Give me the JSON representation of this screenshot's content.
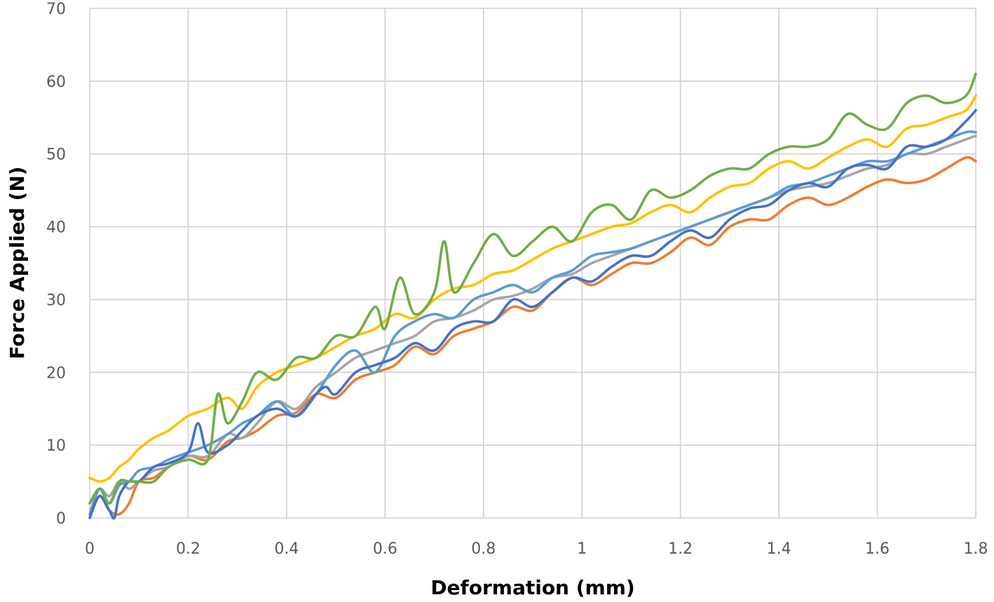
{
  "chart_data": {
    "type": "line",
    "title": "",
    "xlabel": "Deformation (mm)",
    "ylabel": "Force Applied (N)",
    "xlim": [
      0,
      1.8
    ],
    "ylim": [
      0,
      70
    ],
    "x_ticks": [
      "0",
      "0.2",
      "0.4",
      "0.6",
      "0.8",
      "1",
      "1.2",
      "1.4",
      "1.6",
      "1.8"
    ],
    "y_ticks": [
      "0",
      "10",
      "20",
      "30",
      "40",
      "50",
      "60",
      "70"
    ],
    "grid": true,
    "legend": "none",
    "series": [
      {
        "color": "#ed7d31",
        "points": [
          [
            0,
            0.5
          ],
          [
            0.02,
            3
          ],
          [
            0.04,
            1
          ],
          [
            0.06,
            0.5
          ],
          [
            0.08,
            2
          ],
          [
            0.1,
            5
          ],
          [
            0.13,
            5.5
          ],
          [
            0.16,
            7
          ],
          [
            0.2,
            8.5
          ],
          [
            0.24,
            8
          ],
          [
            0.28,
            10.5
          ],
          [
            0.31,
            11
          ],
          [
            0.34,
            12
          ],
          [
            0.38,
            14
          ],
          [
            0.42,
            14.5
          ],
          [
            0.46,
            17
          ],
          [
            0.5,
            16.5
          ],
          [
            0.54,
            19
          ],
          [
            0.58,
            20
          ],
          [
            0.62,
            21
          ],
          [
            0.66,
            23.5
          ],
          [
            0.7,
            22.5
          ],
          [
            0.74,
            25
          ],
          [
            0.78,
            26
          ],
          [
            0.82,
            27
          ],
          [
            0.86,
            29
          ],
          [
            0.9,
            28.5
          ],
          [
            0.94,
            31
          ],
          [
            0.98,
            33
          ],
          [
            1.02,
            32
          ],
          [
            1.06,
            33.5
          ],
          [
            1.1,
            35
          ],
          [
            1.14,
            35
          ],
          [
            1.18,
            36.5
          ],
          [
            1.22,
            38.5
          ],
          [
            1.26,
            37.5
          ],
          [
            1.3,
            40
          ],
          [
            1.34,
            41
          ],
          [
            1.38,
            41
          ],
          [
            1.42,
            43
          ],
          [
            1.46,
            44
          ],
          [
            1.5,
            43
          ],
          [
            1.54,
            44
          ],
          [
            1.58,
            45.5
          ],
          [
            1.62,
            46.5
          ],
          [
            1.66,
            46
          ],
          [
            1.7,
            46.5
          ],
          [
            1.74,
            48
          ],
          [
            1.78,
            49.5
          ],
          [
            1.8,
            49
          ]
        ]
      },
      {
        "color": "#a5a5a5",
        "points": [
          [
            0,
            2
          ],
          [
            0.02,
            4
          ],
          [
            0.04,
            3
          ],
          [
            0.06,
            5
          ],
          [
            0.08,
            4
          ],
          [
            0.1,
            5
          ],
          [
            0.13,
            6.5
          ],
          [
            0.16,
            7
          ],
          [
            0.2,
            8.5
          ],
          [
            0.24,
            8.5
          ],
          [
            0.28,
            11.5
          ],
          [
            0.31,
            11
          ],
          [
            0.34,
            13
          ],
          [
            0.38,
            16
          ],
          [
            0.42,
            15
          ],
          [
            0.46,
            18
          ],
          [
            0.5,
            20
          ],
          [
            0.54,
            22
          ],
          [
            0.58,
            23
          ],
          [
            0.62,
            24
          ],
          [
            0.66,
            25
          ],
          [
            0.7,
            27
          ],
          [
            0.74,
            27.5
          ],
          [
            0.78,
            28.5
          ],
          [
            0.82,
            30
          ],
          [
            0.86,
            30.5
          ],
          [
            0.9,
            31.5
          ],
          [
            0.94,
            33
          ],
          [
            0.98,
            33.5
          ],
          [
            1.02,
            35
          ],
          [
            1.06,
            36
          ],
          [
            1.1,
            37
          ],
          [
            1.14,
            38
          ],
          [
            1.18,
            39
          ],
          [
            1.22,
            40
          ],
          [
            1.26,
            41
          ],
          [
            1.3,
            42
          ],
          [
            1.34,
            43
          ],
          [
            1.38,
            44
          ],
          [
            1.42,
            45
          ],
          [
            1.46,
            45.5
          ],
          [
            1.5,
            46
          ],
          [
            1.54,
            47
          ],
          [
            1.58,
            48
          ],
          [
            1.62,
            48.5
          ],
          [
            1.66,
            50
          ],
          [
            1.7,
            50
          ],
          [
            1.74,
            51
          ],
          [
            1.78,
            52
          ],
          [
            1.8,
            52.5
          ]
        ]
      },
      {
        "color": "#ffc000",
        "points": [
          [
            0,
            5.5
          ],
          [
            0.02,
            5
          ],
          [
            0.04,
            5.5
          ],
          [
            0.06,
            7
          ],
          [
            0.08,
            8
          ],
          [
            0.1,
            9.5
          ],
          [
            0.13,
            11
          ],
          [
            0.16,
            12
          ],
          [
            0.2,
            14
          ],
          [
            0.24,
            15
          ],
          [
            0.28,
            16.5
          ],
          [
            0.31,
            15
          ],
          [
            0.34,
            18
          ],
          [
            0.38,
            20
          ],
          [
            0.42,
            21
          ],
          [
            0.46,
            22
          ],
          [
            0.5,
            23.5
          ],
          [
            0.54,
            25
          ],
          [
            0.58,
            26
          ],
          [
            0.62,
            28
          ],
          [
            0.66,
            27.5
          ],
          [
            0.7,
            30
          ],
          [
            0.74,
            31.5
          ],
          [
            0.78,
            32
          ],
          [
            0.82,
            33.5
          ],
          [
            0.86,
            34
          ],
          [
            0.9,
            35.5
          ],
          [
            0.94,
            37
          ],
          [
            0.98,
            38
          ],
          [
            1.02,
            39
          ],
          [
            1.06,
            40
          ],
          [
            1.1,
            40.5
          ],
          [
            1.14,
            42
          ],
          [
            1.18,
            43
          ],
          [
            1.22,
            42
          ],
          [
            1.26,
            44
          ],
          [
            1.3,
            45.5
          ],
          [
            1.34,
            46
          ],
          [
            1.38,
            48
          ],
          [
            1.42,
            49
          ],
          [
            1.46,
            48
          ],
          [
            1.5,
            49.5
          ],
          [
            1.54,
            51
          ],
          [
            1.58,
            52
          ],
          [
            1.62,
            51
          ],
          [
            1.66,
            53.5
          ],
          [
            1.7,
            54
          ],
          [
            1.74,
            55
          ],
          [
            1.78,
            56
          ],
          [
            1.8,
            58
          ]
        ]
      },
      {
        "color": "#5b9bd5",
        "points": [
          [
            0,
            0.5
          ],
          [
            0.02,
            4
          ],
          [
            0.04,
            2
          ],
          [
            0.06,
            4.5
          ],
          [
            0.08,
            5
          ],
          [
            0.1,
            6.5
          ],
          [
            0.13,
            7
          ],
          [
            0.16,
            8
          ],
          [
            0.2,
            9
          ],
          [
            0.24,
            10
          ],
          [
            0.28,
            11.5
          ],
          [
            0.31,
            13
          ],
          [
            0.34,
            14
          ],
          [
            0.38,
            16
          ],
          [
            0.42,
            14
          ],
          [
            0.46,
            17
          ],
          [
            0.5,
            21
          ],
          [
            0.54,
            23
          ],
          [
            0.58,
            20
          ],
          [
            0.62,
            25
          ],
          [
            0.66,
            27
          ],
          [
            0.7,
            28
          ],
          [
            0.74,
            27.5
          ],
          [
            0.78,
            30
          ],
          [
            0.82,
            31
          ],
          [
            0.86,
            32
          ],
          [
            0.9,
            31
          ],
          [
            0.94,
            33
          ],
          [
            0.98,
            34
          ],
          [
            1.02,
            36
          ],
          [
            1.06,
            36.5
          ],
          [
            1.1,
            37
          ],
          [
            1.14,
            38
          ],
          [
            1.18,
            39
          ],
          [
            1.22,
            40
          ],
          [
            1.26,
            41
          ],
          [
            1.3,
            42
          ],
          [
            1.34,
            43
          ],
          [
            1.38,
            44
          ],
          [
            1.42,
            45.5
          ],
          [
            1.46,
            46
          ],
          [
            1.5,
            47
          ],
          [
            1.54,
            48
          ],
          [
            1.58,
            49
          ],
          [
            1.62,
            49
          ],
          [
            1.66,
            50
          ],
          [
            1.7,
            51
          ],
          [
            1.74,
            52
          ],
          [
            1.78,
            53
          ],
          [
            1.8,
            53
          ]
        ]
      },
      {
        "color": "#4472c4",
        "points": [
          [
            0,
            0
          ],
          [
            0.02,
            3
          ],
          [
            0.04,
            1
          ],
          [
            0.05,
            0
          ],
          [
            0.06,
            3
          ],
          [
            0.08,
            5
          ],
          [
            0.1,
            5
          ],
          [
            0.13,
            7
          ],
          [
            0.16,
            7.5
          ],
          [
            0.2,
            9
          ],
          [
            0.22,
            13
          ],
          [
            0.24,
            9
          ],
          [
            0.28,
            10
          ],
          [
            0.31,
            12
          ],
          [
            0.34,
            14
          ],
          [
            0.38,
            15
          ],
          [
            0.42,
            14
          ],
          [
            0.46,
            17
          ],
          [
            0.48,
            18
          ],
          [
            0.5,
            17
          ],
          [
            0.54,
            20
          ],
          [
            0.58,
            21
          ],
          [
            0.62,
            22
          ],
          [
            0.66,
            24
          ],
          [
            0.7,
            23
          ],
          [
            0.74,
            26
          ],
          [
            0.78,
            27
          ],
          [
            0.82,
            27
          ],
          [
            0.86,
            30
          ],
          [
            0.9,
            29
          ],
          [
            0.94,
            31
          ],
          [
            0.98,
            33
          ],
          [
            1.02,
            32.5
          ],
          [
            1.06,
            34.5
          ],
          [
            1.1,
            36
          ],
          [
            1.14,
            36
          ],
          [
            1.18,
            38
          ],
          [
            1.22,
            39.5
          ],
          [
            1.26,
            38.5
          ],
          [
            1.3,
            41
          ],
          [
            1.34,
            42.5
          ],
          [
            1.38,
            43
          ],
          [
            1.42,
            45
          ],
          [
            1.46,
            46
          ],
          [
            1.5,
            45.5
          ],
          [
            1.54,
            48
          ],
          [
            1.58,
            48.5
          ],
          [
            1.62,
            48
          ],
          [
            1.66,
            51
          ],
          [
            1.7,
            51
          ],
          [
            1.74,
            52
          ],
          [
            1.78,
            54.5
          ],
          [
            1.8,
            56
          ]
        ]
      },
      {
        "color": "#70ad47",
        "points": [
          [
            0,
            2
          ],
          [
            0.02,
            4
          ],
          [
            0.04,
            2
          ],
          [
            0.06,
            5
          ],
          [
            0.08,
            5
          ],
          [
            0.1,
            5
          ],
          [
            0.13,
            5
          ],
          [
            0.16,
            7
          ],
          [
            0.2,
            8
          ],
          [
            0.24,
            8
          ],
          [
            0.26,
            17
          ],
          [
            0.28,
            13
          ],
          [
            0.31,
            16
          ],
          [
            0.34,
            20
          ],
          [
            0.38,
            19
          ],
          [
            0.42,
            22
          ],
          [
            0.46,
            22
          ],
          [
            0.5,
            25
          ],
          [
            0.54,
            25
          ],
          [
            0.58,
            29
          ],
          [
            0.6,
            26
          ],
          [
            0.63,
            33
          ],
          [
            0.66,
            28
          ],
          [
            0.7,
            31
          ],
          [
            0.72,
            38
          ],
          [
            0.74,
            31
          ],
          [
            0.78,
            35
          ],
          [
            0.82,
            39
          ],
          [
            0.86,
            36
          ],
          [
            0.9,
            38
          ],
          [
            0.94,
            40
          ],
          [
            0.98,
            38
          ],
          [
            1.02,
            42
          ],
          [
            1.06,
            43
          ],
          [
            1.1,
            41
          ],
          [
            1.14,
            45
          ],
          [
            1.18,
            44
          ],
          [
            1.22,
            45
          ],
          [
            1.26,
            47
          ],
          [
            1.3,
            48
          ],
          [
            1.34,
            48
          ],
          [
            1.38,
            50
          ],
          [
            1.42,
            51
          ],
          [
            1.46,
            51
          ],
          [
            1.5,
            52
          ],
          [
            1.54,
            55.5
          ],
          [
            1.58,
            54
          ],
          [
            1.62,
            53.5
          ],
          [
            1.66,
            57
          ],
          [
            1.7,
            58
          ],
          [
            1.74,
            57
          ],
          [
            1.78,
            58
          ],
          [
            1.8,
            61
          ]
        ]
      }
    ]
  }
}
